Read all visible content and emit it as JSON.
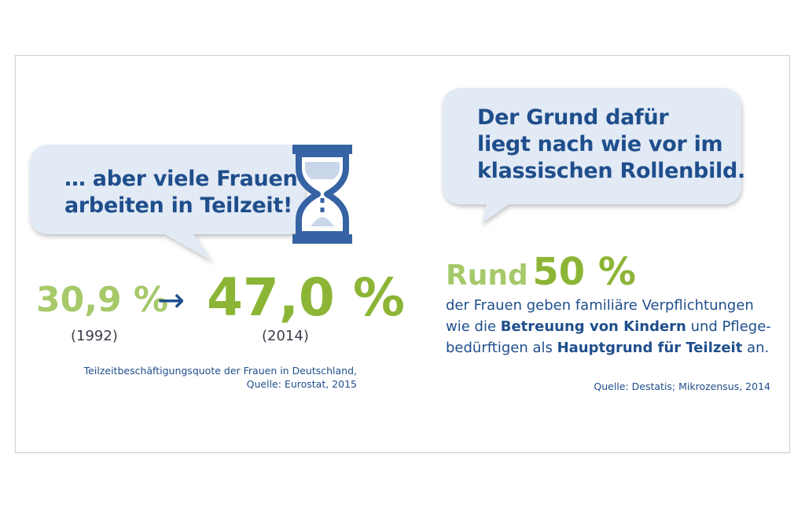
{
  "left_bubble": {
    "line1": "… aber viele Frauen",
    "line2": "arbeiten in Teilzeit!"
  },
  "stat_1992": {
    "value": "30,9 %",
    "year": "(1992)"
  },
  "arrow": "→",
  "stat_2014": {
    "value": "47,0 %",
    "year": "(2014)"
  },
  "left_source": {
    "line1": "Teilzeitbeschäftigungsquote der Frauen in Deutschland,",
    "line2": "Quelle: Eurostat, 2015"
  },
  "right_bubble": {
    "line1": "Der Grund dafür",
    "line2": "liegt nach wie vor im",
    "line3": "klassischen Rollenbild."
  },
  "headline": {
    "prefix": "Rund",
    "value": "50 %"
  },
  "body": {
    "l1": "der Frauen geben familiäre Verpflichtungen",
    "l2_a": "wie die ",
    "l2_b": "Betreuung von Kindern",
    "l2_c": " und Pflege-",
    "l3_a": "bedürftigen als ",
    "l3_b": "Hauptgrund für Teilzeit",
    "l3_c": " an."
  },
  "right_source": "Quelle: Destatis; Mikrozensus, 2014",
  "colors": {
    "blue": "#1f4e8c",
    "green": "#8cb536",
    "green_light": "#a6c96a",
    "bubble": "#e2eaf5"
  },
  "icons": [
    "hourglass-icon",
    "arrow-right-icon"
  ]
}
